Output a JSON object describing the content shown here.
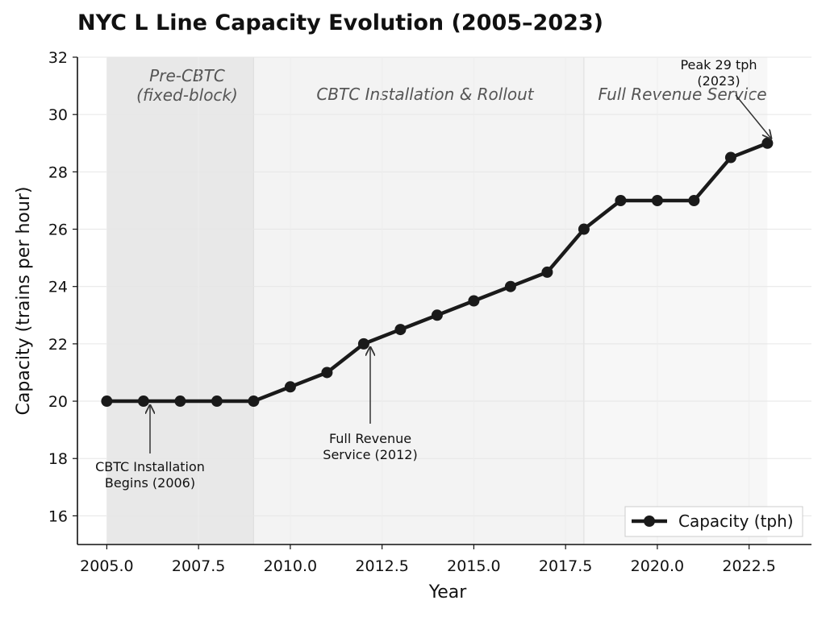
{
  "title": "NYC L Line Capacity Evolution (2005–2023)",
  "chart_data": {
    "type": "line",
    "title": "NYC L Line Capacity Evolution (2005–2023)",
    "xlabel": "Year",
    "ylabel": "Capacity (trains per hour)",
    "xlim": [
      2004.2,
      2024.2
    ],
    "ylim": [
      15,
      32
    ],
    "xticks": [
      2005.0,
      2007.5,
      2010.0,
      2012.5,
      2015.0,
      2017.5,
      2020.0,
      2022.5
    ],
    "xtick_labels": [
      "2005.0",
      "2007.5",
      "2010.0",
      "2012.5",
      "2015.0",
      "2017.5",
      "2020.0",
      "2022.5"
    ],
    "yticks": [
      16,
      18,
      20,
      22,
      24,
      26,
      28,
      30,
      32
    ],
    "ytick_labels": [
      "16",
      "18",
      "20",
      "22",
      "24",
      "26",
      "28",
      "30",
      "32"
    ],
    "grid": true,
    "legend_position": "bottom-right",
    "series": [
      {
        "name": "Capacity (tph)",
        "color": "#1a1a1a",
        "x": [
          2005,
          2006,
          2007,
          2008,
          2009,
          2010,
          2011,
          2012,
          2013,
          2014,
          2015,
          2016,
          2017,
          2018,
          2019,
          2020,
          2021,
          2022,
          2023
        ],
        "y": [
          20,
          20,
          20,
          20,
          20,
          20.5,
          21,
          22,
          22.5,
          23,
          23.5,
          24,
          24.5,
          26,
          27,
          27,
          27,
          28.5,
          29
        ]
      }
    ],
    "phases": [
      {
        "label_lines": [
          "Pre-CBTC",
          "(fixed-block)"
        ],
        "x_start": 2005,
        "x_end": 2009,
        "color": "#e8e8e8"
      },
      {
        "label_lines": [
          "CBTC Installation & Rollout"
        ],
        "x_start": 2009,
        "x_end": 2018,
        "color": "#f3f3f3"
      },
      {
        "label_lines": [
          "Full Revenue Service"
        ],
        "x_start": 2018,
        "x_end": 2023,
        "color": "#f7f7f7"
      }
    ],
    "annotations": [
      {
        "text_lines": [
          "CBTC Installation",
          "Begins (2006)"
        ],
        "point_x": 2006,
        "point_y": 20
      },
      {
        "text_lines": [
          "Full Revenue",
          "Service (2012)"
        ],
        "point_x": 2012,
        "point_y": 22
      },
      {
        "text_lines": [
          "Peak 29 tph",
          "(2023)"
        ],
        "point_x": 2023,
        "point_y": 29
      }
    ]
  }
}
